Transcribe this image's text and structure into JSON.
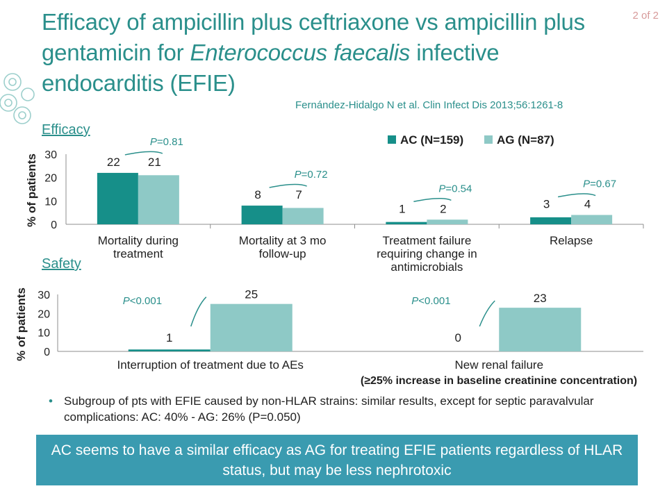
{
  "page_number": "2 of 2",
  "title": {
    "part1": "Efficacy of ampicillin plus ceftriaxone vs ampicillin plus gentamicin for ",
    "italic": "Enterococcus faecalis",
    "part2": " infective endocarditis (EFIE)"
  },
  "citation": "Fernández-Hidalgo N et al. Clin Infect Dis 2013;56:1261-8",
  "sections": {
    "efficacy": "Efficacy",
    "safety": "Safety"
  },
  "colors": {
    "ac": "#168f89",
    "ag": "#8ec9c6",
    "accent": "#2a8f8b",
    "box": "#3a9bb0"
  },
  "chart_data": [
    {
      "type": "bar",
      "ylabel": "% of patients",
      "ylim": [
        0,
        30
      ],
      "yticks": [
        "0",
        "10",
        "20",
        "30"
      ],
      "legend_position": "top-right",
      "categories": [
        [
          "Mortality during",
          "treatment"
        ],
        [
          "Mortality at 3 mo",
          "follow-up"
        ],
        [
          "Treatment failure",
          "requiring change in",
          "antimicrobials"
        ],
        [
          "Relapse"
        ]
      ],
      "series": [
        {
          "name": "AC (N=159)",
          "values": [
            22,
            8,
            1,
            3
          ]
        },
        {
          "name": "AG (N=87)",
          "values": [
            21,
            7,
            2,
            4
          ]
        }
      ],
      "pvalues": [
        {
          "p": "P",
          "rest": "=0.81"
        },
        {
          "p": "P",
          "rest": "=0.72"
        },
        {
          "p": "P",
          "rest": "=0.54"
        },
        {
          "p": "P",
          "rest": "=0.67"
        }
      ]
    },
    {
      "type": "bar",
      "ylabel": "% of patients",
      "ylim": [
        0,
        30
      ],
      "yticks": [
        "0",
        "10",
        "20",
        "30"
      ],
      "categories": [
        [
          "Interruption of treatment due to AEs"
        ],
        [
          "New renal failure"
        ]
      ],
      "sublabel": "(≥25% increase in baseline creatinine concentration)",
      "series": [
        {
          "name": "AC",
          "values": [
            1,
            0
          ]
        },
        {
          "name": "AG",
          "values": [
            25,
            23
          ]
        }
      ],
      "pvalues": [
        {
          "p": "P",
          "rest": "<0.001"
        },
        {
          "p": "P",
          "rest": "<0.001"
        }
      ]
    }
  ],
  "bullet": "Subgroup of pts with EFIE caused by non-HLAR strains: similar results, except for septic paravalvular complications: AC: 40% - AG: 26% (P=0.050)",
  "conclusion": "AC seems to have a similar efficacy as AG for treating EFIE patients regardless of HLAR status, but may be less nephrotoxic"
}
